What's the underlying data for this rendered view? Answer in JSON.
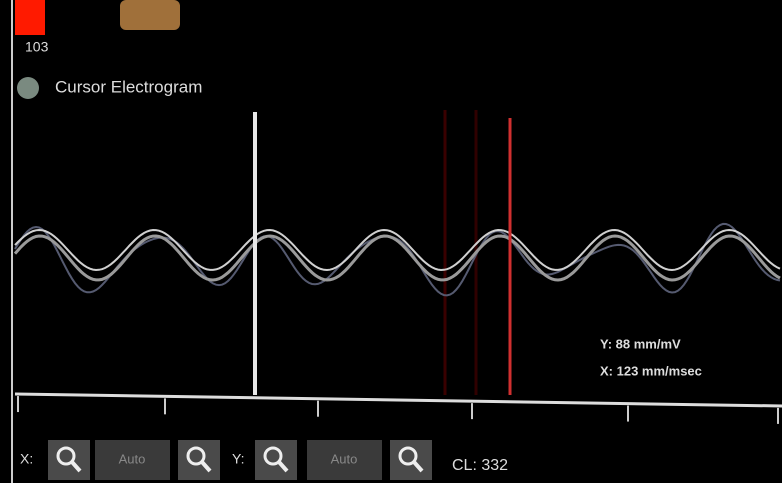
{
  "legend": {
    "value": "103",
    "label": "Cursor Electrogram"
  },
  "readout": {
    "y": "Y: 88 mm/mV",
    "x": "X: 123 mm/msec"
  },
  "toolbar": {
    "x_label": "X:",
    "x_auto": "Auto",
    "y_label": "Y:",
    "y_auto": "Auto",
    "cycle_length": "CL: 332"
  }
}
